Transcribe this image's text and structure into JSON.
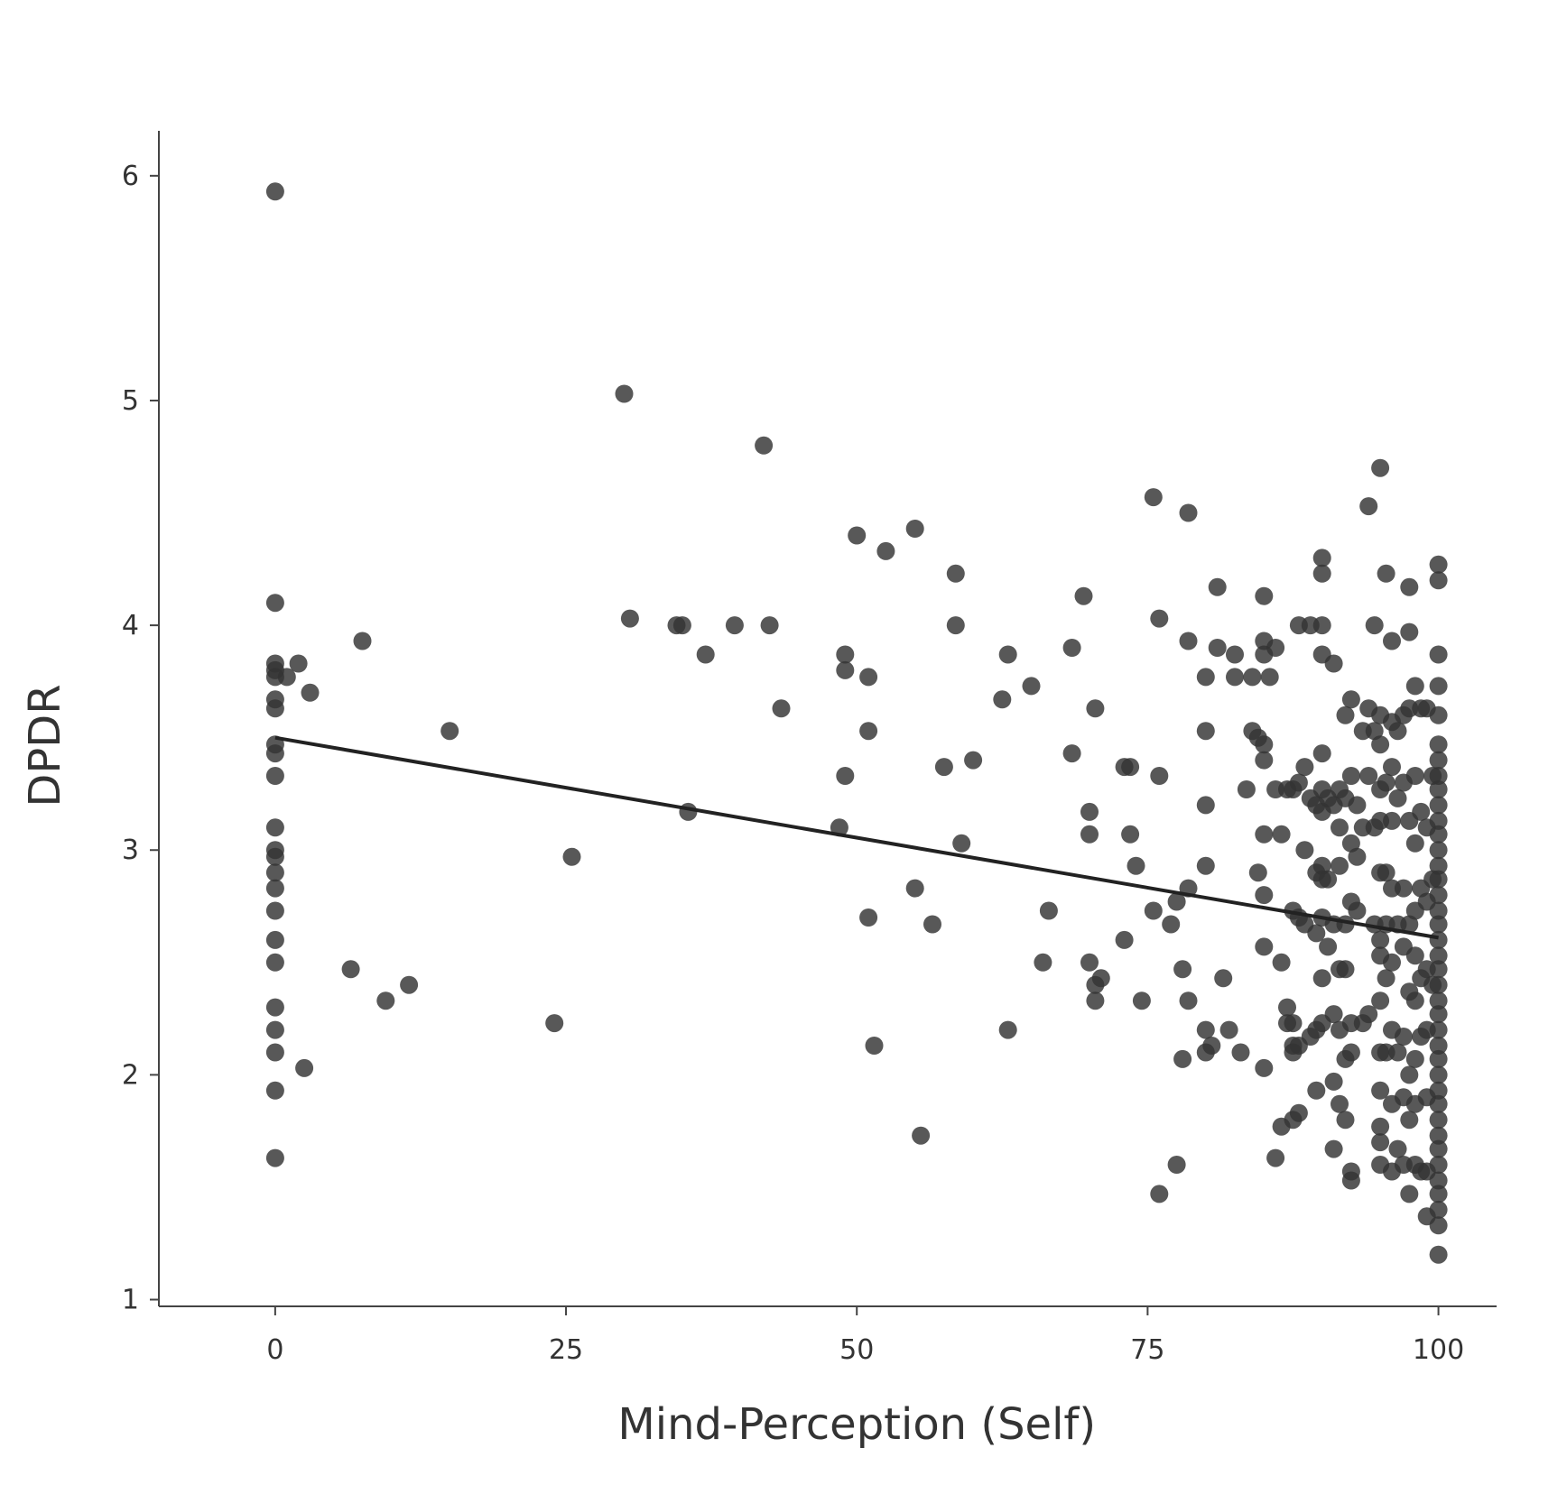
{
  "chart_data": {
    "type": "scatter",
    "title": "",
    "xlabel": "Mind-Perception (Self)",
    "ylabel": "DPDR",
    "xlim": [
      -10,
      105
    ],
    "ylim": [
      0.97,
      6.2
    ],
    "x_ticks": [
      0,
      25,
      50,
      75,
      100
    ],
    "y_ticks": [
      1,
      2,
      3,
      4,
      5,
      6
    ],
    "x_tick_labels": [
      "0",
      "25",
      "50",
      "75",
      "100"
    ],
    "y_tick_labels": [
      "1",
      "2",
      "3",
      "4",
      "5",
      "6"
    ],
    "grid": false,
    "legend": "none",
    "point_color": "#333333",
    "line_color": "#222222",
    "fit_line": {
      "x": [
        0,
        100
      ],
      "y": [
        3.5,
        2.61
      ]
    },
    "points": [
      [
        0,
        5.93
      ],
      [
        0,
        4.1
      ],
      [
        0,
        3.83
      ],
      [
        0,
        3.8
      ],
      [
        0,
        3.77
      ],
      [
        0,
        3.67
      ],
      [
        0,
        3.63
      ],
      [
        0,
        3.47
      ],
      [
        0,
        3.43
      ],
      [
        0,
        3.33
      ],
      [
        0,
        3.1
      ],
      [
        0,
        3.0
      ],
      [
        0,
        2.97
      ],
      [
        0,
        2.9
      ],
      [
        0,
        2.83
      ],
      [
        0,
        2.73
      ],
      [
        0,
        2.6
      ],
      [
        0,
        2.5
      ],
      [
        0,
        2.3
      ],
      [
        0,
        2.2
      ],
      [
        0,
        2.1
      ],
      [
        0,
        1.93
      ],
      [
        0,
        1.63
      ],
      [
        1,
        3.77
      ],
      [
        2,
        3.83
      ],
      [
        2.5,
        2.03
      ],
      [
        3,
        3.7
      ],
      [
        6.5,
        2.47
      ],
      [
        7.5,
        3.93
      ],
      [
        9.5,
        2.33
      ],
      [
        11.5,
        2.4
      ],
      [
        15,
        3.53
      ],
      [
        24,
        2.23
      ],
      [
        25.5,
        2.97
      ],
      [
        30,
        5.03
      ],
      [
        30.5,
        4.03
      ],
      [
        34.5,
        4.0
      ],
      [
        35,
        4.0
      ],
      [
        35.5,
        3.17
      ],
      [
        37,
        3.87
      ],
      [
        39.5,
        4.0
      ],
      [
        42,
        4.8
      ],
      [
        42.5,
        4.0
      ],
      [
        43.5,
        3.63
      ],
      [
        48.5,
        3.1
      ],
      [
        49,
        3.87
      ],
      [
        49,
        3.8
      ],
      [
        49,
        3.33
      ],
      [
        50,
        4.4
      ],
      [
        51,
        3.77
      ],
      [
        51,
        3.53
      ],
      [
        51,
        2.7
      ],
      [
        51.5,
        2.13
      ],
      [
        52.5,
        4.33
      ],
      [
        55,
        4.43
      ],
      [
        55,
        2.83
      ],
      [
        55.5,
        1.73
      ],
      [
        56.5,
        2.67
      ],
      [
        57.5,
        3.37
      ],
      [
        58.5,
        4.23
      ],
      [
        58.5,
        4.0
      ],
      [
        59,
        3.03
      ],
      [
        60,
        3.4
      ],
      [
        62.5,
        3.67
      ],
      [
        63,
        3.87
      ],
      [
        63,
        2.2
      ],
      [
        65,
        3.73
      ],
      [
        66,
        2.5
      ],
      [
        66.5,
        2.73
      ],
      [
        68.5,
        3.9
      ],
      [
        68.5,
        3.43
      ],
      [
        69.5,
        4.13
      ],
      [
        70,
        3.17
      ],
      [
        70,
        3.07
      ],
      [
        70,
        2.5
      ],
      [
        70.5,
        3.63
      ],
      [
        70.5,
        2.4
      ],
      [
        70.5,
        2.33
      ],
      [
        71,
        2.43
      ],
      [
        73,
        3.37
      ],
      [
        73,
        2.6
      ],
      [
        73.5,
        3.37
      ],
      [
        73.5,
        3.07
      ],
      [
        74,
        2.93
      ],
      [
        74.5,
        2.33
      ],
      [
        75.5,
        4.57
      ],
      [
        75.5,
        2.73
      ],
      [
        76,
        4.03
      ],
      [
        76,
        3.33
      ],
      [
        76,
        1.47
      ],
      [
        77,
        2.67
      ],
      [
        77.5,
        2.77
      ],
      [
        77.5,
        1.6
      ],
      [
        78,
        2.47
      ],
      [
        78,
        2.07
      ],
      [
        78.5,
        4.5
      ],
      [
        78.5,
        3.93
      ],
      [
        78.5,
        2.83
      ],
      [
        78.5,
        2.33
      ],
      [
        80,
        3.77
      ],
      [
        80,
        3.53
      ],
      [
        80,
        3.2
      ],
      [
        80,
        2.93
      ],
      [
        80,
        2.2
      ],
      [
        80,
        2.1
      ],
      [
        80.5,
        2.13
      ],
      [
        81,
        4.17
      ],
      [
        81,
        3.9
      ],
      [
        81.5,
        2.43
      ],
      [
        82,
        2.2
      ],
      [
        82.5,
        3.87
      ],
      [
        82.5,
        3.77
      ],
      [
        83,
        2.1
      ],
      [
        83.5,
        3.27
      ],
      [
        84,
        3.77
      ],
      [
        84,
        3.53
      ],
      [
        84.5,
        3.5
      ],
      [
        84.5,
        2.9
      ],
      [
        85,
        4.13
      ],
      [
        85,
        3.93
      ],
      [
        85,
        3.87
      ],
      [
        85,
        3.47
      ],
      [
        85,
        3.4
      ],
      [
        85,
        3.07
      ],
      [
        85,
        2.8
      ],
      [
        85,
        2.57
      ],
      [
        85,
        2.03
      ],
      [
        85.5,
        3.77
      ],
      [
        86,
        3.9
      ],
      [
        86,
        3.27
      ],
      [
        86,
        1.63
      ],
      [
        86.5,
        3.07
      ],
      [
        86.5,
        2.5
      ],
      [
        86.5,
        1.77
      ],
      [
        87,
        3.27
      ],
      [
        87,
        2.23
      ],
      [
        87,
        2.3
      ],
      [
        87.5,
        3.27
      ],
      [
        87.5,
        2.73
      ],
      [
        87.5,
        2.23
      ],
      [
        87.5,
        2.13
      ],
      [
        87.5,
        2.1
      ],
      [
        87.5,
        1.8
      ],
      [
        88,
        4.0
      ],
      [
        88,
        3.3
      ],
      [
        88,
        2.7
      ],
      [
        88,
        2.13
      ],
      [
        88,
        1.83
      ],
      [
        88.5,
        3.37
      ],
      [
        88.5,
        3.0
      ],
      [
        88.5,
        2.67
      ],
      [
        89,
        4.0
      ],
      [
        89,
        3.23
      ],
      [
        89,
        2.17
      ],
      [
        89.5,
        3.2
      ],
      [
        89.5,
        2.9
      ],
      [
        89.5,
        2.63
      ],
      [
        89.5,
        2.2
      ],
      [
        89.5,
        1.93
      ],
      [
        90,
        4.0
      ],
      [
        90,
        4.3
      ],
      [
        90,
        4.23
      ],
      [
        90,
        3.87
      ],
      [
        90,
        3.43
      ],
      [
        90,
        3.27
      ],
      [
        90,
        3.17
      ],
      [
        90,
        2.93
      ],
      [
        90,
        2.87
      ],
      [
        90,
        2.7
      ],
      [
        90,
        2.43
      ],
      [
        90,
        2.23
      ],
      [
        90.5,
        3.23
      ],
      [
        90.5,
        2.87
      ],
      [
        90.5,
        2.57
      ],
      [
        91,
        3.83
      ],
      [
        91,
        3.2
      ],
      [
        91,
        2.67
      ],
      [
        91,
        2.27
      ],
      [
        91,
        1.97
      ],
      [
        91,
        1.67
      ],
      [
        91.5,
        3.27
      ],
      [
        91.5,
        3.1
      ],
      [
        91.5,
        2.93
      ],
      [
        91.5,
        2.47
      ],
      [
        91.5,
        2.2
      ],
      [
        91.5,
        1.87
      ],
      [
        92,
        3.6
      ],
      [
        92,
        3.23
      ],
      [
        92,
        2.67
      ],
      [
        92,
        2.47
      ],
      [
        92,
        2.07
      ],
      [
        92,
        1.8
      ],
      [
        92.5,
        3.67
      ],
      [
        92.5,
        3.33
      ],
      [
        92.5,
        3.03
      ],
      [
        92.5,
        2.77
      ],
      [
        92.5,
        2.23
      ],
      [
        92.5,
        2.1
      ],
      [
        92.5,
        1.57
      ],
      [
        92.5,
        1.53
      ],
      [
        93,
        3.2
      ],
      [
        93,
        2.97
      ],
      [
        93,
        2.73
      ],
      [
        93.5,
        3.53
      ],
      [
        93.5,
        3.1
      ],
      [
        93.5,
        2.23
      ],
      [
        94,
        4.53
      ],
      [
        94,
        3.63
      ],
      [
        94,
        3.33
      ],
      [
        94,
        2.27
      ],
      [
        94.5,
        4.0
      ],
      [
        94.5,
        3.53
      ],
      [
        94.5,
        3.1
      ],
      [
        94.5,
        2.67
      ],
      [
        95,
        4.7
      ],
      [
        95,
        3.6
      ],
      [
        95,
        3.47
      ],
      [
        95,
        3.27
      ],
      [
        95,
        3.13
      ],
      [
        95,
        2.9
      ],
      [
        95,
        2.6
      ],
      [
        95,
        2.53
      ],
      [
        95,
        2.33
      ],
      [
        95,
        2.1
      ],
      [
        95,
        1.93
      ],
      [
        95,
        1.77
      ],
      [
        95,
        1.7
      ],
      [
        95,
        1.6
      ],
      [
        95.5,
        4.23
      ],
      [
        95.5,
        3.3
      ],
      [
        95.5,
        2.9
      ],
      [
        95.5,
        2.67
      ],
      [
        95.5,
        2.43
      ],
      [
        95.5,
        2.1
      ],
      [
        96,
        3.93
      ],
      [
        96,
        3.57
      ],
      [
        96,
        3.37
      ],
      [
        96,
        3.13
      ],
      [
        96,
        2.83
      ],
      [
        96,
        2.5
      ],
      [
        96,
        2.2
      ],
      [
        96,
        1.87
      ],
      [
        96,
        1.57
      ],
      [
        96.5,
        3.53
      ],
      [
        96.5,
        3.23
      ],
      [
        96.5,
        2.67
      ],
      [
        96.5,
        2.1
      ],
      [
        96.5,
        1.67
      ],
      [
        97,
        3.6
      ],
      [
        97,
        3.3
      ],
      [
        97,
        2.83
      ],
      [
        97,
        2.57
      ],
      [
        97,
        2.17
      ],
      [
        97,
        1.9
      ],
      [
        97,
        1.6
      ],
      [
        97.5,
        4.17
      ],
      [
        97.5,
        3.97
      ],
      [
        97.5,
        3.63
      ],
      [
        97.5,
        3.13
      ],
      [
        97.5,
        2.67
      ],
      [
        97.5,
        2.37
      ],
      [
        97.5,
        2.0
      ],
      [
        97.5,
        1.8
      ],
      [
        97.5,
        1.47
      ],
      [
        98,
        3.73
      ],
      [
        98,
        3.33
      ],
      [
        98,
        3.03
      ],
      [
        98,
        2.73
      ],
      [
        98,
        2.53
      ],
      [
        98,
        2.33
      ],
      [
        98,
        2.07
      ],
      [
        98,
        1.87
      ],
      [
        98,
        1.6
      ],
      [
        98.5,
        3.63
      ],
      [
        98.5,
        3.17
      ],
      [
        98.5,
        2.83
      ],
      [
        98.5,
        2.43
      ],
      [
        98.5,
        2.17
      ],
      [
        98.5,
        1.57
      ],
      [
        99,
        3.63
      ],
      [
        99,
        3.1
      ],
      [
        99,
        2.77
      ],
      [
        99,
        2.47
      ],
      [
        99,
        2.2
      ],
      [
        99,
        1.9
      ],
      [
        99,
        1.57
      ],
      [
        99,
        1.37
      ],
      [
        99.5,
        3.33
      ],
      [
        99.5,
        2.87
      ],
      [
        99.5,
        2.4
      ],
      [
        100,
        4.27
      ],
      [
        100,
        4.2
      ],
      [
        100,
        3.87
      ],
      [
        100,
        3.73
      ],
      [
        100,
        3.6
      ],
      [
        100,
        3.47
      ],
      [
        100,
        3.4
      ],
      [
        100,
        3.33
      ],
      [
        100,
        3.27
      ],
      [
        100,
        3.2
      ],
      [
        100,
        3.13
      ],
      [
        100,
        3.07
      ],
      [
        100,
        3.0
      ],
      [
        100,
        2.93
      ],
      [
        100,
        2.87
      ],
      [
        100,
        2.8
      ],
      [
        100,
        2.73
      ],
      [
        100,
        2.67
      ],
      [
        100,
        2.6
      ],
      [
        100,
        2.53
      ],
      [
        100,
        2.47
      ],
      [
        100,
        2.4
      ],
      [
        100,
        2.33
      ],
      [
        100,
        2.27
      ],
      [
        100,
        2.2
      ],
      [
        100,
        2.13
      ],
      [
        100,
        2.07
      ],
      [
        100,
        2.0
      ],
      [
        100,
        1.93
      ],
      [
        100,
        1.87
      ],
      [
        100,
        1.8
      ],
      [
        100,
        1.73
      ],
      [
        100,
        1.67
      ],
      [
        100,
        1.6
      ],
      [
        100,
        1.53
      ],
      [
        100,
        1.47
      ],
      [
        100,
        1.4
      ],
      [
        100,
        1.33
      ],
      [
        100,
        1.2
      ]
    ]
  }
}
